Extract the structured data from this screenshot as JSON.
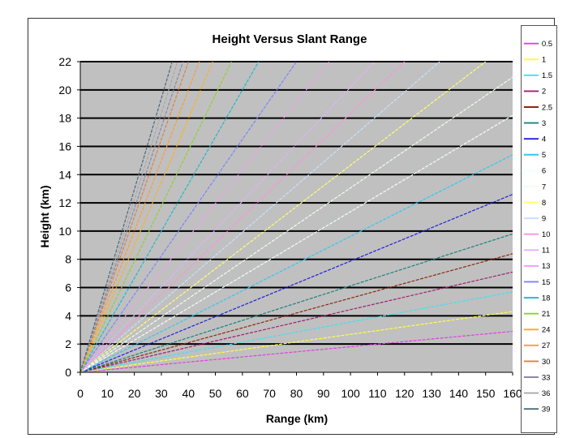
{
  "chart_data": {
    "type": "line",
    "title": "Height Versus Slant Range",
    "xlabel": "Range (km)",
    "ylabel": "Height (km)",
    "xlim": [
      0,
      160
    ],
    "ylim": [
      0,
      22
    ],
    "xticks": [
      "0",
      "10",
      "20",
      "30",
      "40",
      "50",
      "60",
      "70",
      "80",
      "90",
      "100",
      "110",
      "120",
      "130",
      "140",
      "150",
      "160"
    ],
    "yticks": [
      "0",
      "2",
      "4",
      "6",
      "8",
      "10",
      "12",
      "14",
      "16",
      "18",
      "20",
      "22"
    ],
    "grid": true,
    "plot_background": "#c0c0c0",
    "legend_position": "right",
    "series": [
      {
        "name": "0.5",
        "color": "#e040e0",
        "x": [
          0,
          160
        ],
        "y": [
          0,
          2.9
        ]
      },
      {
        "name": "1",
        "color": "#ffff40",
        "x": [
          0,
          160
        ],
        "y": [
          0,
          4.3
        ]
      },
      {
        "name": "1.5",
        "color": "#40e0f0",
        "x": [
          0,
          160
        ],
        "y": [
          0,
          5.7
        ]
      },
      {
        "name": "2",
        "color": "#a02070",
        "x": [
          0,
          160
        ],
        "y": [
          0,
          7.1
        ]
      },
      {
        "name": "2.5",
        "color": "#8b2a10",
        "x": [
          0,
          160
        ],
        "y": [
          0,
          8.4
        ]
      },
      {
        "name": "3",
        "color": "#1c8080",
        "x": [
          0,
          160
        ],
        "y": [
          0,
          9.8
        ]
      },
      {
        "name": "4",
        "color": "#2020e0",
        "x": [
          0,
          160
        ],
        "y": [
          0,
          12.6
        ]
      },
      {
        "name": "5",
        "color": "#30c8f0",
        "x": [
          0,
          160
        ],
        "y": [
          0,
          15.4
        ]
      },
      {
        "name": "6",
        "color": "#f0ffff",
        "x": [
          0,
          160
        ],
        "y": [
          0,
          18.2
        ]
      },
      {
        "name": "7",
        "color": "#f0fff0",
        "x": [
          0,
          160
        ],
        "y": [
          0,
          20.9
        ]
      },
      {
        "name": "8",
        "color": "#ffff70",
        "x": [
          0,
          150
        ],
        "y": [
          0,
          22
        ]
      },
      {
        "name": "9",
        "color": "#c8e0ff",
        "x": [
          0,
          133
        ],
        "y": [
          0,
          22
        ]
      },
      {
        "name": "10",
        "color": "#ff90e0",
        "x": [
          0,
          120
        ],
        "y": [
          0,
          22
        ]
      },
      {
        "name": "11",
        "color": "#e0b0ff",
        "x": [
          0,
          109
        ],
        "y": [
          0,
          22
        ]
      },
      {
        "name": "13",
        "color": "#f0a0f0",
        "x": [
          0,
          92
        ],
        "y": [
          0,
          22
        ]
      },
      {
        "name": "15",
        "color": "#8080ff",
        "x": [
          0,
          80
        ],
        "y": [
          0,
          22
        ]
      },
      {
        "name": "18",
        "color": "#20b8c8",
        "x": [
          0,
          66
        ],
        "y": [
          0,
          22
        ]
      },
      {
        "name": "21",
        "color": "#90d030",
        "x": [
          0,
          56
        ],
        "y": [
          0,
          22
        ]
      },
      {
        "name": "24",
        "color": "#ffb020",
        "x": [
          0,
          49
        ],
        "y": [
          0,
          22
        ]
      },
      {
        "name": "27",
        "color": "#ff9c30",
        "x": [
          0,
          44
        ],
        "y": [
          0,
          22
        ]
      },
      {
        "name": "30",
        "color": "#e08040",
        "x": [
          0,
          40
        ],
        "y": [
          0,
          22
        ]
      },
      {
        "name": "33",
        "color": "#8888a8",
        "x": [
          0,
          38
        ],
        "y": [
          0,
          22
        ]
      },
      {
        "name": "36",
        "color": "#a8a8a8",
        "x": [
          0,
          36
        ],
        "y": [
          0,
          22
        ]
      },
      {
        "name": "39",
        "color": "#506878",
        "x": [
          0,
          34
        ],
        "y": [
          0,
          22
        ]
      }
    ]
  }
}
